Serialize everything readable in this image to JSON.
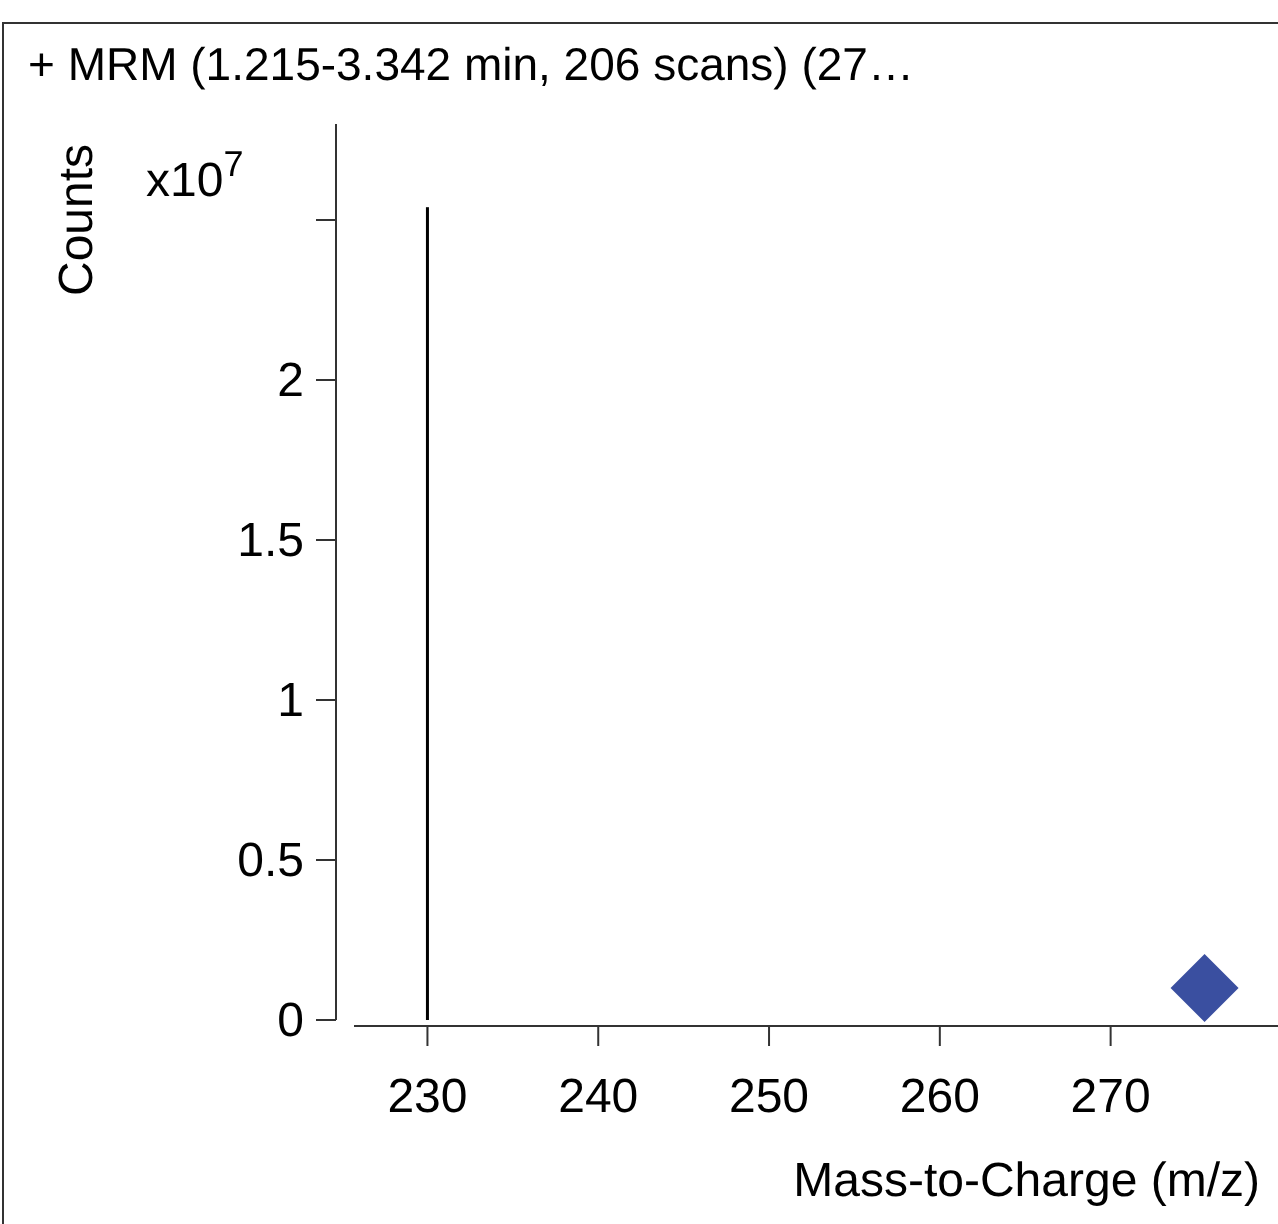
{
  "chart_data": {
    "type": "bar",
    "title": "+ MRM (1.215-3.342 min, 206 scans) (27…",
    "xlabel": "Mass-to-Charge (m/z)",
    "ylabel": "Counts",
    "annotations": [
      "x10$^{7}$"
    ],
    "xlim": [
      225.7,
      279.8
    ],
    "xticks": [
      230,
      240,
      250,
      260,
      270
    ],
    "ylim": [
      0,
      2.8
    ],
    "yticks": [
      0,
      0.5,
      1,
      1.5,
      2,
      {
        "value": 2.5,
        "label": null
      }
    ],
    "grid": false,
    "series": [
      {
        "color": "#000000",
        "x": [
          230
        ],
        "values": [
          2.54
        ]
      },
      {
        "type": "scatter",
        "color": "#3a4fa0",
        "marker": "diamond",
        "x": [
          275.5
        ],
        "values": [
          0.1
        ]
      }
    ]
  }
}
